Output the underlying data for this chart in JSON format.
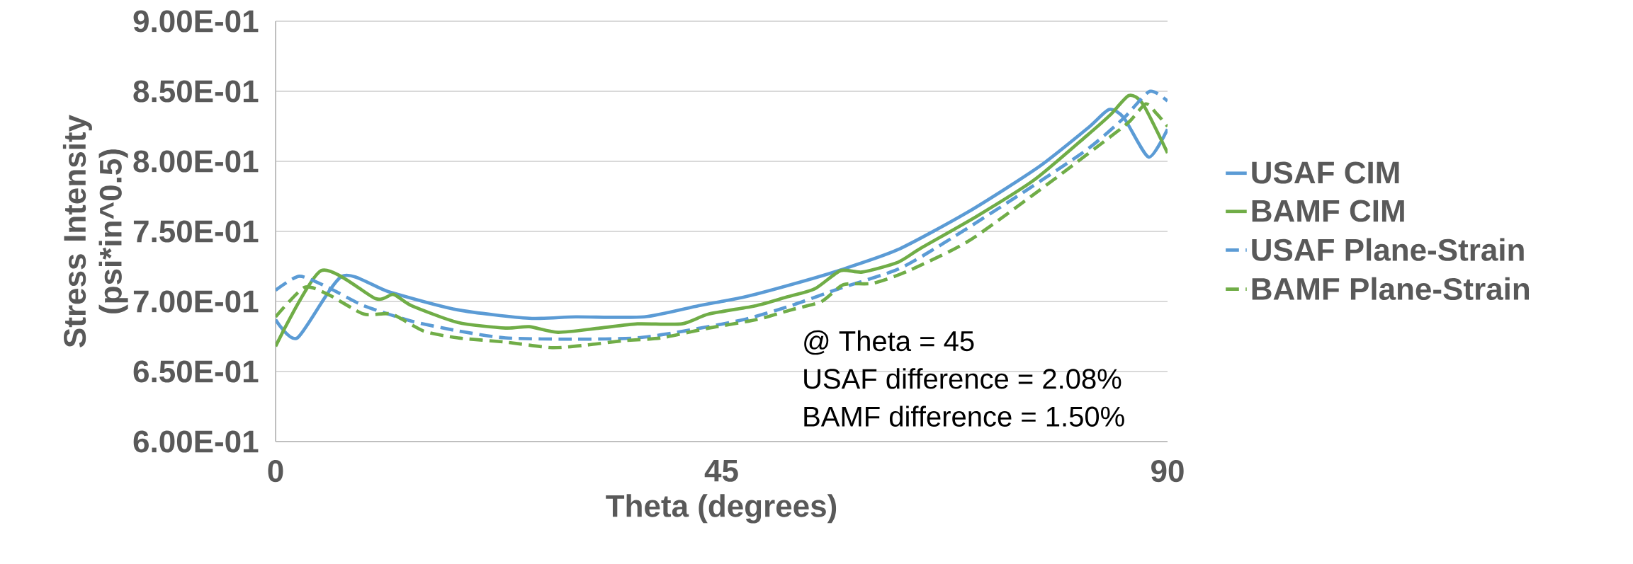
{
  "chart_data": {
    "type": "line",
    "xlabel": "Theta (degrees)",
    "ylabel": "Stress Intensity (psi*in^0.5)",
    "xlim": [
      0,
      90
    ],
    "xticks": [
      0,
      45,
      90
    ],
    "ylim": [
      0.6,
      0.9
    ],
    "yticks": [
      {
        "value": 0.6,
        "label": "6.00E-01"
      },
      {
        "value": 0.65,
        "label": "6.50E-01"
      },
      {
        "value": 0.7,
        "label": "7.00E-01"
      },
      {
        "value": 0.75,
        "label": "7.50E-01"
      },
      {
        "value": 0.8,
        "label": "8.00E-01"
      },
      {
        "value": 0.85,
        "label": "8.50E-01"
      },
      {
        "value": 0.9,
        "label": "9.00E-01"
      }
    ],
    "grid": "y",
    "legend": "right",
    "marker": "none",
    "annotations": [
      "@ Theta = 45",
      "USAF difference = 2.08%",
      "BAMF difference = 1.50%"
    ],
    "series": [
      {
        "name": "USAF CIM",
        "color": "#5b9bd5",
        "line_style": "solid",
        "x": [
          0,
          2.2,
          6.7,
          11.4,
          18.4,
          25.6,
          30.3,
          37.2,
          42.7,
          47.2,
          52,
          56.8,
          62.8,
          69.9,
          77,
          82,
          84.1,
          85.6,
          88.1,
          90
        ],
        "values": [
          0.687,
          0.674,
          0.718,
          0.707,
          0.694,
          0.688,
          0.689,
          0.689,
          0.697,
          0.703,
          0.712,
          0.722,
          0.737,
          0.764,
          0.796,
          0.824,
          0.837,
          0.831,
          0.803,
          0.823
        ]
      },
      {
        "name": "BAMF CIM",
        "color": "#70ad47",
        "line_style": "solid",
        "x": [
          0,
          4.6,
          10.1,
          11.9,
          13.7,
          18.4,
          23.2,
          25.6,
          28.5,
          32.7,
          36.5,
          41,
          43.7,
          48.5,
          51.5,
          54.4,
          57,
          59.2,
          62.8,
          65.1,
          70.8,
          76.6,
          81.8,
          84.2,
          86.1,
          87.5,
          90
        ],
        "values": [
          0.668,
          0.722,
          0.702,
          0.705,
          0.697,
          0.685,
          0.681,
          0.682,
          0.678,
          0.681,
          0.684,
          0.684,
          0.691,
          0.697,
          0.703,
          0.709,
          0.722,
          0.721,
          0.728,
          0.738,
          0.761,
          0.787,
          0.818,
          0.833,
          0.847,
          0.841,
          0.806
        ]
      },
      {
        "name": "USAF Plane-Strain",
        "color": "#5b9bd5",
        "line_style": "dashed",
        "x": [
          0,
          2.4,
          5.3,
          8.9,
          13.7,
          18.4,
          23.2,
          30.3,
          36.5,
          41.3,
          47.2,
          52,
          56.8,
          62.8,
          67.5,
          74.6,
          81.8,
          85.6,
          88.2,
          90
        ],
        "values": [
          0.708,
          0.718,
          0.71,
          0.697,
          0.686,
          0.679,
          0.674,
          0.673,
          0.674,
          0.679,
          0.687,
          0.697,
          0.709,
          0.723,
          0.742,
          0.774,
          0.808,
          0.831,
          0.85,
          0.843
        ]
      },
      {
        "name": "BAMF Plane-Strain",
        "color": "#70ad47",
        "line_style": "dashed",
        "x": [
          0,
          2.9,
          5.3,
          8.9,
          11.7,
          14.9,
          18.4,
          23.2,
          27.9,
          31.5,
          35.1,
          38.9,
          43.7,
          48.5,
          52,
          55.1,
          57.3,
          60.3,
          63.9,
          69.9,
          77,
          83.2,
          86.1,
          87.8,
          88.9,
          90
        ],
        "values": [
          0.689,
          0.71,
          0.705,
          0.691,
          0.691,
          0.679,
          0.674,
          0.671,
          0.667,
          0.669,
          0.672,
          0.674,
          0.681,
          0.687,
          0.694,
          0.7,
          0.712,
          0.713,
          0.722,
          0.743,
          0.779,
          0.812,
          0.828,
          0.841,
          0.834,
          0.825
        ]
      }
    ]
  }
}
